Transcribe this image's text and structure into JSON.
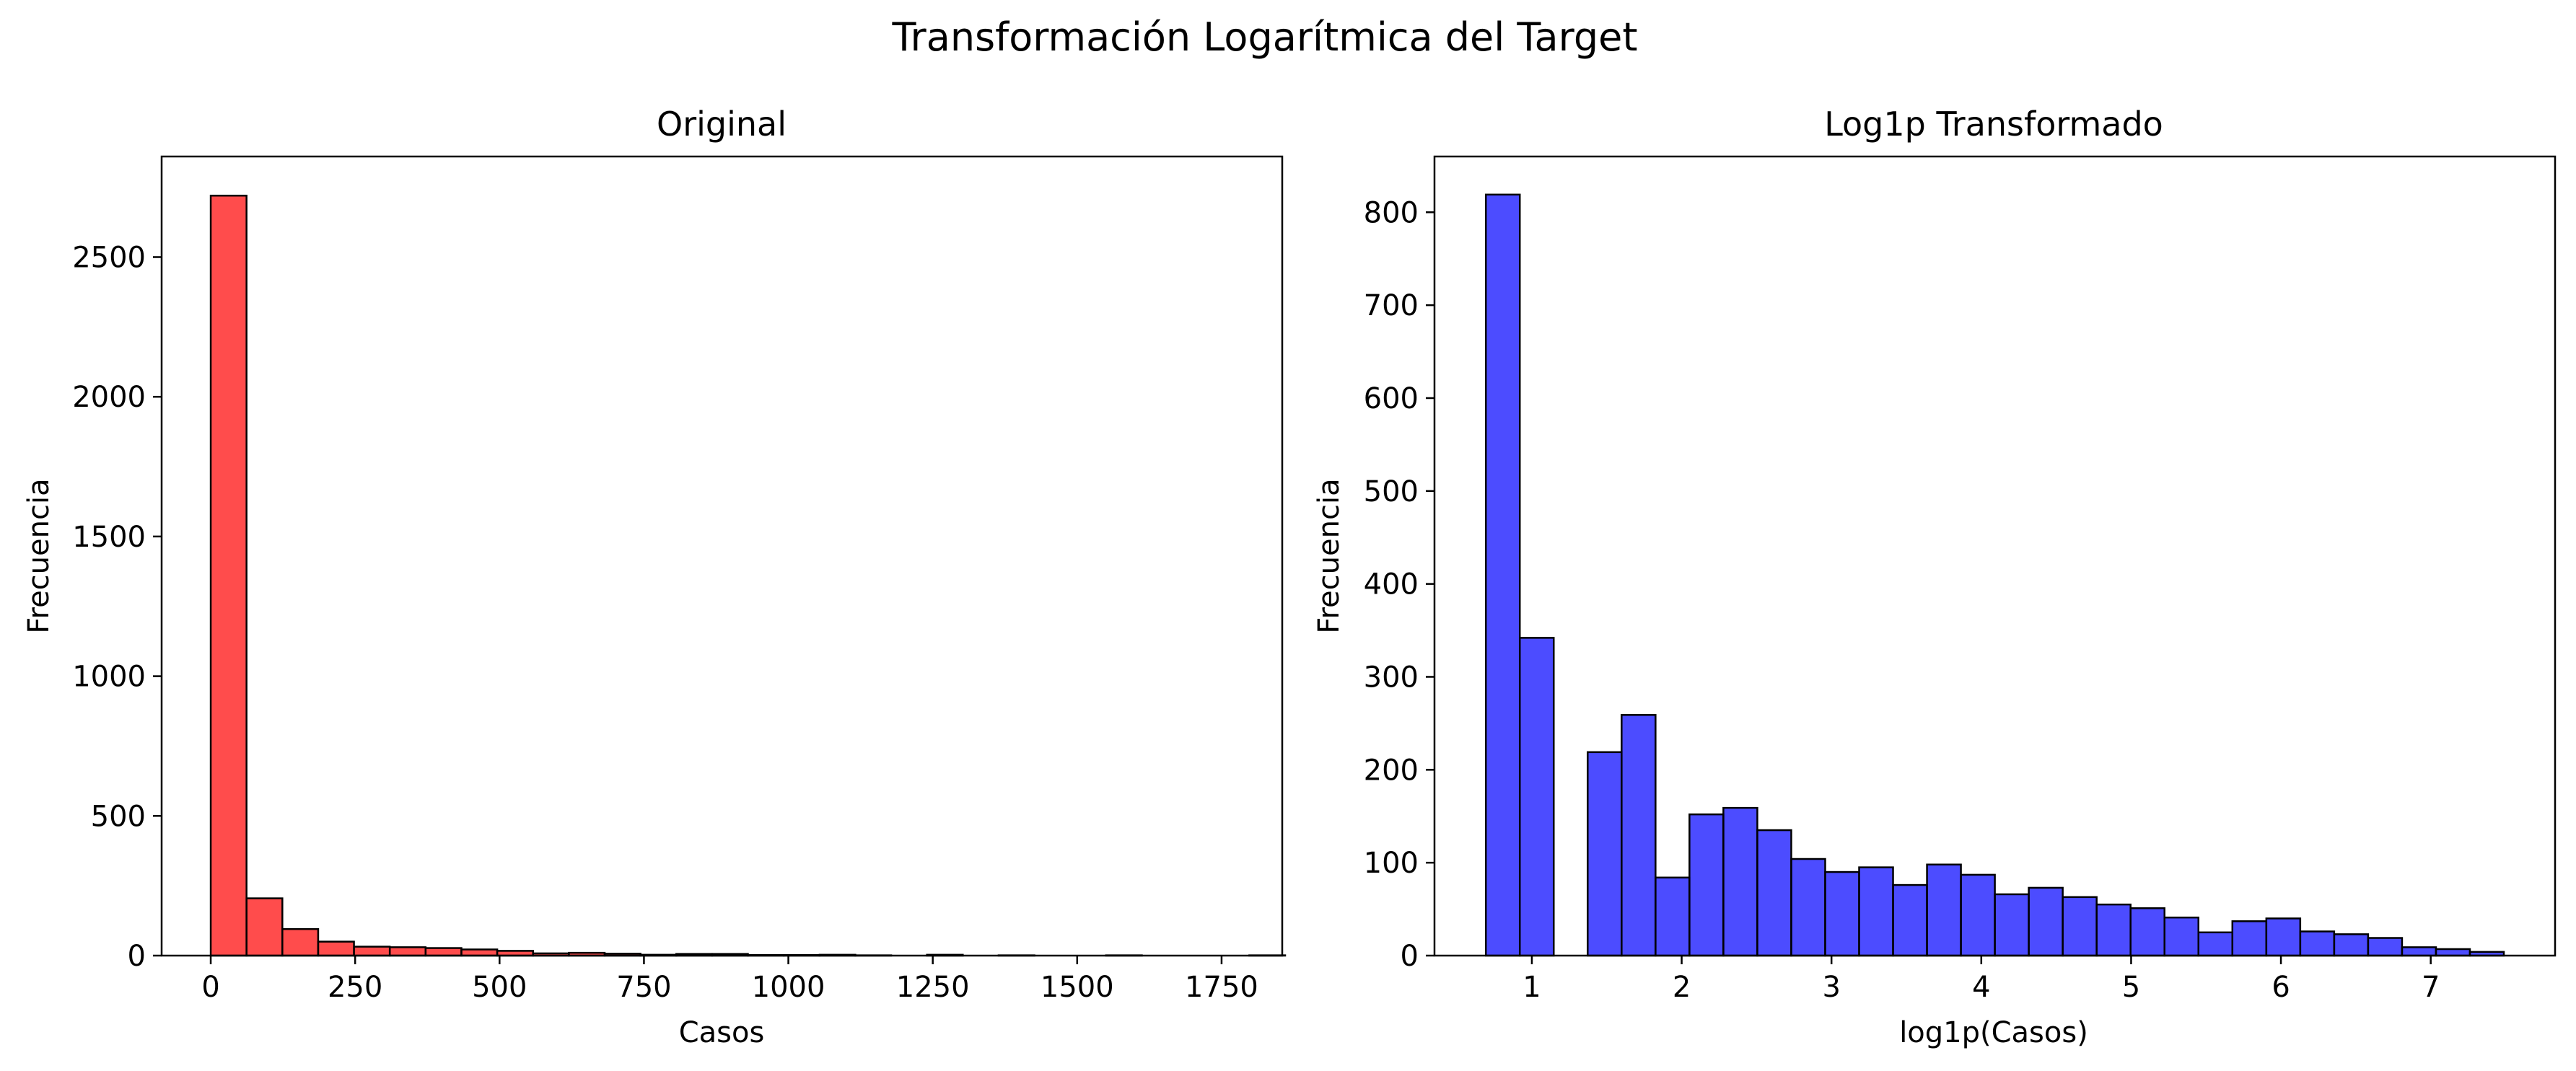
{
  "suptitle": "Transformación Logarítmica del Target",
  "colors": {
    "left_bar_fill": "#ff0000",
    "right_bar_fill": "#0000ff",
    "bar_edge": "#000000",
    "background": "#ffffff"
  },
  "chart_data": [
    {
      "type": "bar",
      "subtype": "histogram",
      "title": "Original",
      "xlabel": "Casos",
      "ylabel": "Frecuencia",
      "bar_color": "#ff0000",
      "bar_alpha": 0.7,
      "xlim": [
        -85,
        1855
      ],
      "ylim": [
        0,
        2860
      ],
      "xticks": [
        0,
        250,
        500,
        750,
        1000,
        1250,
        1500,
        1750
      ],
      "xtick_labels": [
        "0",
        "250",
        "500",
        "750",
        "1000",
        "1250",
        "1500",
        "1750"
      ],
      "yticks": [
        0,
        500,
        1000,
        1500,
        2000,
        2500
      ],
      "ytick_labels": [
        "0",
        "500",
        "1000",
        "1500",
        "2000",
        "2500"
      ],
      "bin_start": 0,
      "bin_width": 62,
      "values": [
        2720,
        205,
        95,
        50,
        32,
        30,
        27,
        22,
        17,
        8,
        10,
        7,
        3,
        6,
        6,
        2,
        2,
        3,
        1,
        0,
        3,
        0,
        1,
        0,
        0,
        1,
        0,
        0,
        0,
        1
      ],
      "grid": false
    },
    {
      "type": "bar",
      "subtype": "histogram",
      "title": "Log1p Transformado",
      "xlabel": "log1p(Casos)",
      "ylabel": "Frecuencia",
      "bar_color": "#0000ff",
      "bar_alpha": 0.7,
      "xlim": [
        0.35,
        7.83
      ],
      "ylim": [
        0,
        860
      ],
      "xticks": [
        1,
        2,
        3,
        4,
        5,
        6,
        7
      ],
      "xtick_labels": [
        "1",
        "2",
        "3",
        "4",
        "5",
        "6",
        "7"
      ],
      "yticks": [
        0,
        100,
        200,
        300,
        400,
        500,
        600,
        700,
        800
      ],
      "ytick_labels": [
        "0",
        "100",
        "200",
        "300",
        "400",
        "500",
        "600",
        "700",
        "800"
      ],
      "bin_start": 0.693,
      "bin_width": 0.2265,
      "values": [
        819,
        342,
        0,
        219,
        259,
        84,
        152,
        159,
        135,
        104,
        90,
        95,
        76,
        98,
        87,
        66,
        73,
        63,
        55,
        51,
        41,
        25,
        37,
        40,
        26,
        23,
        19,
        9,
        7,
        4
      ],
      "grid": false
    }
  ]
}
